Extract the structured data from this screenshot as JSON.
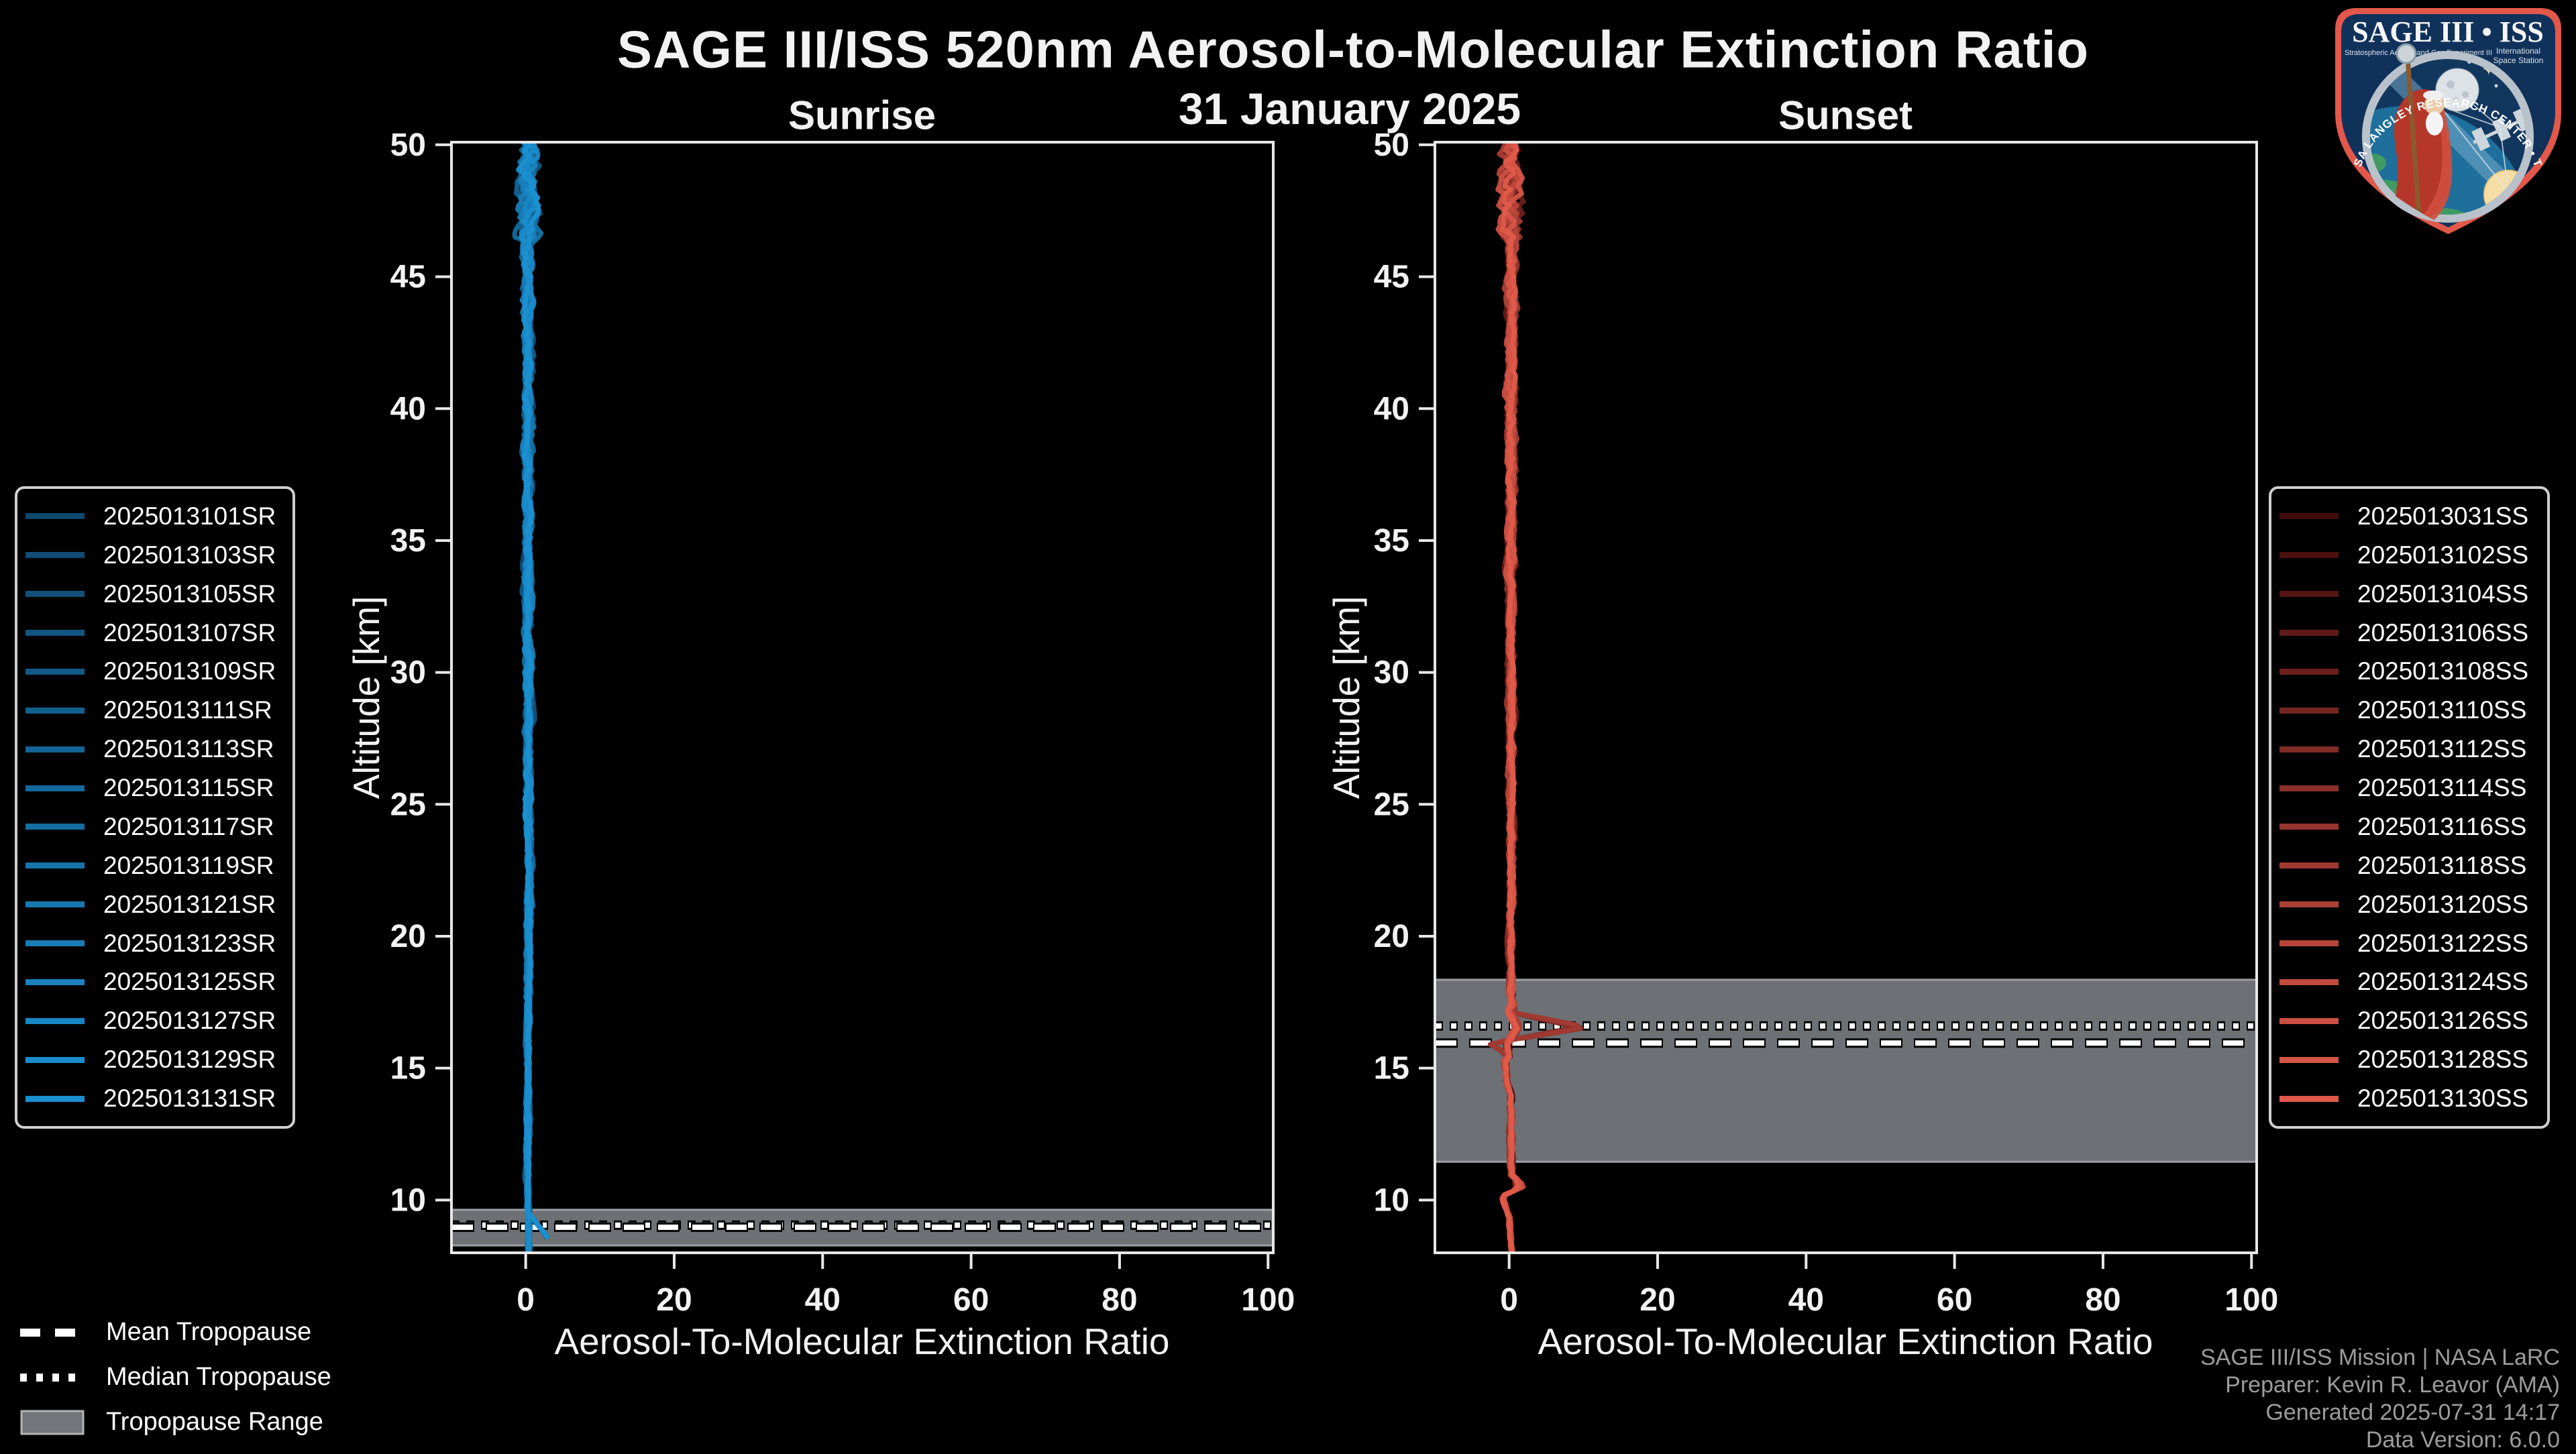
{
  "title": "SAGE III/ISS 520nm Aerosol-to-Molecular Extinction Ratio",
  "subtitle": "31 January 2025",
  "chart_data": {
    "type": "line",
    "panels": [
      {
        "id": "sunrise",
        "title": "Sunrise",
        "xlabel": "Aerosol-To-Molecular Extinction Ratio",
        "ylabel": "Altitude [km]",
        "xlim": [
          -10,
          100.7
        ],
        "ylim": [
          8.0,
          50.1
        ],
        "xticks": [
          0,
          20,
          40,
          60,
          80,
          100
        ],
        "yticks": [
          10,
          15,
          20,
          25,
          30,
          35,
          40,
          45,
          50
        ],
        "grid": false,
        "line_color_ramp": [
          "#0f476d",
          "#1b90d1"
        ],
        "series": [
          "2025013101SR",
          "2025013103SR",
          "2025013105SR",
          "2025013107SR",
          "2025013109SR",
          "2025013111SR",
          "2025013113SR",
          "2025013115SR",
          "2025013117SR",
          "2025013119SR",
          "2025013121SR",
          "2025013123SR",
          "2025013125SR",
          "2025013127SR",
          "2025013129SR",
          "2025013131SR"
        ],
        "profile": [
          [
            50.1,
            0.4
          ],
          [
            48,
            0.2
          ],
          [
            45,
            0.35
          ],
          [
            40,
            0.3
          ],
          [
            35,
            0.25
          ],
          [
            30,
            0.3
          ],
          [
            25,
            0.3
          ],
          [
            22,
            0.55
          ],
          [
            20,
            0.35
          ],
          [
            15,
            0.3
          ],
          [
            12,
            0.25
          ],
          [
            10,
            0.3
          ],
          [
            9.0,
            0.4
          ],
          [
            8.0,
            0.45
          ]
        ],
        "branch": [
          [
            9.5,
            0.4
          ],
          [
            8.9,
            2.1
          ],
          [
            8.45,
            3.2
          ]
        ],
        "tropopause": {
          "mean_km": 8.97,
          "median_km": 9.05,
          "range_km": [
            8.28,
            9.63
          ]
        }
      },
      {
        "id": "sunset",
        "title": "Sunset",
        "xlabel": "Aerosol-To-Molecular Extinction Ratio",
        "ylabel": "Altitude [km]",
        "xlim": [
          -10,
          100.7
        ],
        "ylim": [
          8.0,
          50.1
        ],
        "xticks": [
          0,
          20,
          40,
          60,
          80,
          100
        ],
        "yticks": [
          10,
          15,
          20,
          25,
          30,
          35,
          40,
          45,
          50
        ],
        "grid": false,
        "line_color_ramp": [
          "#400b0b",
          "#e05a4a"
        ],
        "series": [
          "2025013031SS",
          "2025013102SS",
          "2025013104SS",
          "2025013106SS",
          "2025013108SS",
          "2025013110SS",
          "2025013112SS",
          "2025013114SS",
          "2025013116SS",
          "2025013118SS",
          "2025013120SS",
          "2025013122SS",
          "2025013124SS",
          "2025013126SS",
          "2025013128SS",
          "2025013130SS"
        ],
        "profile": [
          [
            50.1,
            0.3
          ],
          [
            48,
            0.15
          ],
          [
            45,
            0.25
          ],
          [
            40,
            0.2
          ],
          [
            35,
            0.25
          ],
          [
            30,
            0.2
          ],
          [
            25,
            0.3
          ],
          [
            20,
            0.25
          ],
          [
            17.6,
            0.3
          ],
          [
            17.1,
            0.7
          ],
          [
            16.55,
            11.3
          ],
          [
            16.15,
            2.2
          ],
          [
            15.95,
            -2.9
          ],
          [
            15.55,
            -0.6
          ],
          [
            14.5,
            -0.4
          ],
          [
            14,
            0.2
          ],
          [
            12,
            0.25
          ],
          [
            10.9,
            0.4
          ],
          [
            10.55,
            2.3
          ],
          [
            10.15,
            -0.9
          ],
          [
            9.3,
            0.1
          ],
          [
            8.0,
            0.35
          ]
        ],
        "tropopause": {
          "mean_km": 15.95,
          "median_km": 16.6,
          "range_km": [
            11.45,
            18.35
          ]
        }
      }
    ],
    "styles": {
      "band_fill": "#6d7075",
      "band_edge": "#9ba0a5",
      "mean_line": "#ffffff",
      "median_line": "#ffffff",
      "line_outline": "#000000",
      "spine": "#e8e8e8",
      "tick_label": "#f2f2f2"
    }
  },
  "tropo_legend": {
    "mean": "Mean Tropopause",
    "median": "Median Tropopause",
    "range": "Tropopause Range"
  },
  "credits": {
    "line1": "SAGE III/ISS Mission | NASA LaRC",
    "line2": "Preparer: Kevin R. Leavor (AMA)",
    "line3": "Generated 2025-07-31 14:17",
    "line4": "Data Version: 6.0.0"
  },
  "logo": {
    "title": "SAGE III • ISS",
    "sub_left": "Stratospheric Aerosol and Gas Experiment III",
    "sub_right_1": "International",
    "sub_right_2": "Space Station",
    "arc_text": "BALL • NASA LANGLEY RESEARCH CENTER • TAS-I • ESA"
  }
}
